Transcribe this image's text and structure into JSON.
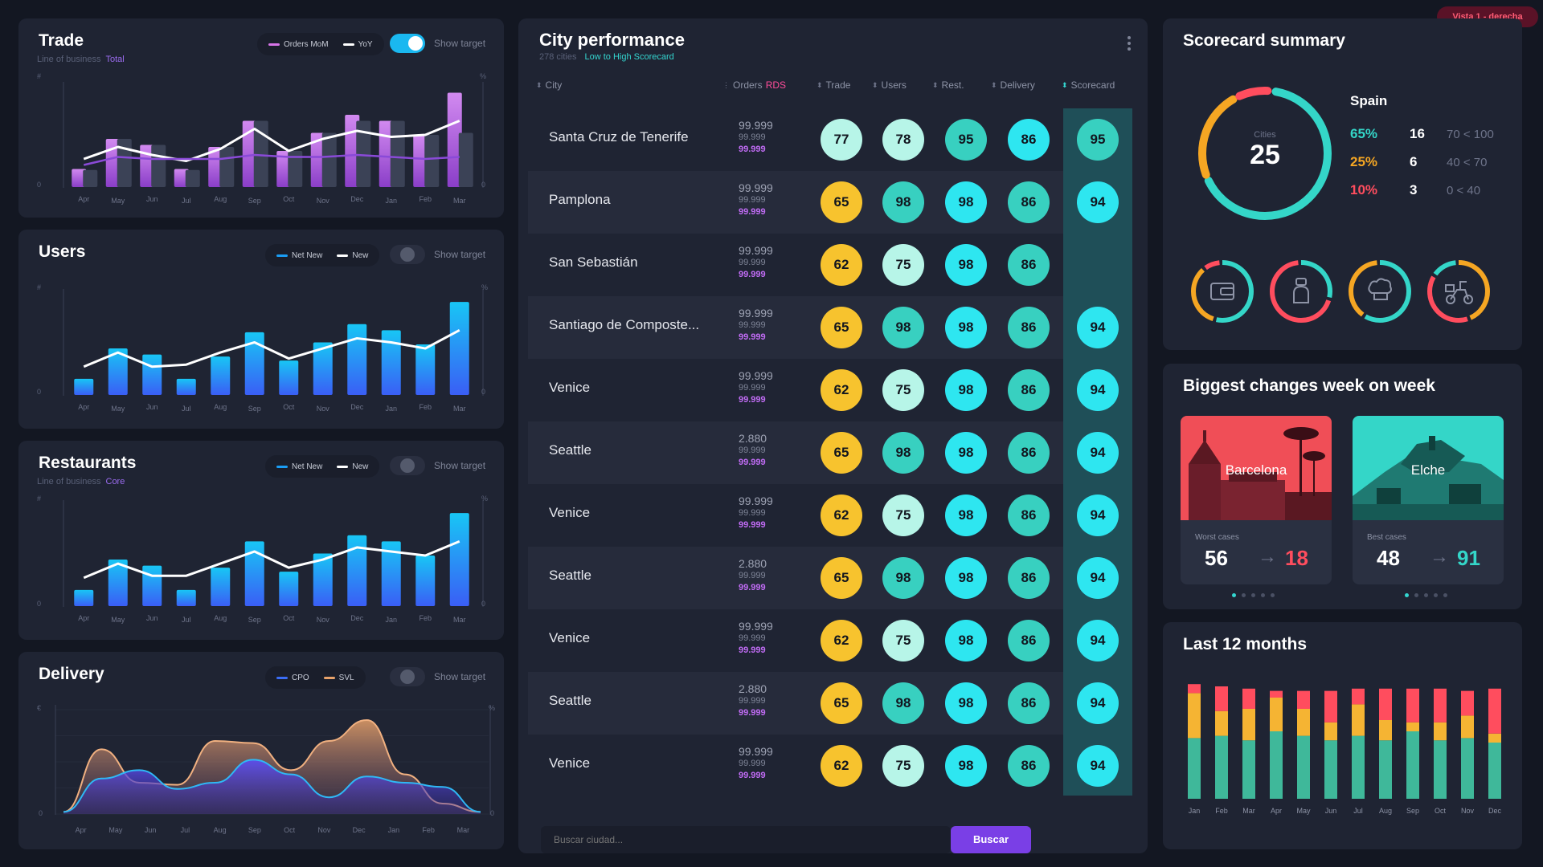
{
  "vista": "Vista 1 -  derecha",
  "trade": {
    "title": "Trade",
    "subtitle": "Line of business",
    "subtitle_value": "Total",
    "legend": [
      "Orders MoM",
      "YoY"
    ],
    "toggle_on": true,
    "show_target": "Show target",
    "axis_left_top": "#",
    "axis_right_top": "%",
    "axis_zero": "0",
    "months": [
      "Apr",
      "May",
      "Jun",
      "Jul",
      "Aug",
      "Sep",
      "Oct",
      "Nov",
      "Dec",
      "Jan",
      "Feb",
      "Mar"
    ]
  },
  "users": {
    "title": "Users",
    "legend": [
      "Net New",
      "New"
    ],
    "toggle_on": false,
    "show_target": "Show target",
    "axis_left_top": "#",
    "axis_right_top": "%",
    "axis_zero": "0",
    "months": [
      "Apr",
      "May",
      "Jun",
      "Jul",
      "Aug",
      "Sep",
      "Oct",
      "Nov",
      "Dec",
      "Jan",
      "Feb",
      "Mar"
    ]
  },
  "restaurants": {
    "title": "Restaurants",
    "subtitle": "Line of business",
    "subtitle_value": "Core",
    "legend": [
      "Net New",
      "New"
    ],
    "toggle_on": false,
    "show_target": "Show target",
    "axis_left_top": "#",
    "axis_right_top": "%",
    "axis_zero": "0",
    "months": [
      "Apr",
      "May",
      "Jun",
      "Jul",
      "Aug",
      "Sep",
      "Oct",
      "Nov",
      "Dec",
      "Jan",
      "Feb",
      "Mar"
    ]
  },
  "delivery": {
    "title": "Delivery",
    "legend": [
      "CPO",
      "SVL"
    ],
    "toggle_on": false,
    "show_target": "Show target",
    "axis_left_top": "€",
    "axis_right_top": "%",
    "axis_zero": "0",
    "months": [
      "Apr",
      "May",
      "Jun",
      "Jul",
      "Aug",
      "Sep",
      "Oct",
      "Nov",
      "Dec",
      "Jan",
      "Feb",
      "Mar"
    ]
  },
  "city_performance": {
    "title": "City performance",
    "count": "278 cities",
    "sort": "Low to High Scorecard",
    "columns": {
      "city": "City",
      "orders": "Orders",
      "orders_suffix": "RDS",
      "trade": "Trade",
      "users": "Users",
      "rest": "Rest.",
      "delivery": "Delivery",
      "scorecard": "Scorecard"
    },
    "rows": [
      {
        "city": "Santa Cruz de Tenerife",
        "o1": "99.999",
        "o2": "99.999",
        "o3": "99.999",
        "trade": 77,
        "users": 78,
        "rest": 95,
        "delivery": 86,
        "scorecard": 95
      },
      {
        "city": "Pamplona",
        "o1": "99.999",
        "o2": "99.999",
        "o3": "99.999",
        "trade": 65,
        "users": 98,
        "rest": 98,
        "delivery": 86,
        "scorecard": 94
      },
      {
        "city": "San Sebastián",
        "o1": "99.999",
        "o2": "99.999",
        "o3": "99.999",
        "trade": 62,
        "users": 75,
        "rest": 98,
        "delivery": 86,
        "scorecard": null
      },
      {
        "city": "Santiago de Composte...",
        "o1": "99.999",
        "o2": "99.999",
        "o3": "99.999",
        "trade": 65,
        "users": 98,
        "rest": 98,
        "delivery": 86,
        "scorecard": 94
      },
      {
        "city": "Venice",
        "o1": "99.999",
        "o2": "99.999",
        "o3": "99.999",
        "trade": 62,
        "users": 75,
        "rest": 98,
        "delivery": 86,
        "scorecard": 94
      },
      {
        "city": "Seattle",
        "o1": "2.880",
        "o2": "99.999",
        "o3": "99.999",
        "trade": 65,
        "users": 98,
        "rest": 98,
        "delivery": 86,
        "scorecard": 94
      },
      {
        "city": "Venice",
        "o1": "99.999",
        "o2": "99.999",
        "o3": "99.999",
        "trade": 62,
        "users": 75,
        "rest": 98,
        "delivery": 86,
        "scorecard": 94
      },
      {
        "city": "Seattle",
        "o1": "2.880",
        "o2": "99.999",
        "o3": "99.999",
        "trade": 65,
        "users": 98,
        "rest": 98,
        "delivery": 86,
        "scorecard": 94
      },
      {
        "city": "Venice",
        "o1": "99.999",
        "o2": "99.999",
        "o3": "99.999",
        "trade": 62,
        "users": 75,
        "rest": 98,
        "delivery": 86,
        "scorecard": 94
      },
      {
        "city": "Seattle",
        "o1": "2.880",
        "o2": "99.999",
        "o3": "99.999",
        "trade": 65,
        "users": 98,
        "rest": 98,
        "delivery": 86,
        "scorecard": 94
      },
      {
        "city": "Venice",
        "o1": "99.999",
        "o2": "99.999",
        "o3": "99.999",
        "trade": 62,
        "users": 75,
        "rest": 98,
        "delivery": 86,
        "scorecard": 94
      }
    ],
    "search_placeholder": "Buscar ciudad...",
    "search_button": "Buscar"
  },
  "scorecard_summary": {
    "title": "Scorecard summary",
    "donut_label": "Cities",
    "donut_value": "25",
    "country": "Spain",
    "breakdown": [
      {
        "pct": "65%",
        "count": "16",
        "range": "70 < 100",
        "color": "#34d6c8"
      },
      {
        "pct": "25%",
        "count": "6",
        "range": "40 < 70",
        "color": "#f5a623"
      },
      {
        "pct": "10%",
        "count": "3",
        "range": "0 < 40",
        "color": "#ff4d5e"
      }
    ],
    "icons": [
      "wallet-icon",
      "user-icon",
      "chef-hat-icon",
      "scooter-icon"
    ]
  },
  "biggest_changes": {
    "title": "Biggest changes week on week",
    "cards": [
      {
        "city": "Barcelona",
        "label": "Worst cases",
        "from": "56",
        "to": "18",
        "to_color": "#ff4d5e"
      },
      {
        "city": "Elche",
        "label": "Best cases",
        "from": "48",
        "to": "91",
        "to_color": "#34d6c8"
      }
    ],
    "arrow": "→"
  },
  "last12": {
    "title": "Last 12 months",
    "months": [
      "Jan",
      "Feb",
      "Mar",
      "Apr",
      "May",
      "Jun",
      "Jul",
      "Aug",
      "Sep",
      "Oct",
      "Nov",
      "Dec"
    ]
  },
  "chart_data": [
    {
      "type": "bar",
      "chart": "trade",
      "categories": [
        "Apr",
        "May",
        "Jun",
        "Jul",
        "Aug",
        "Sep",
        "Oct",
        "Nov",
        "Dec",
        "Jan",
        "Feb",
        "Mar"
      ],
      "series": [
        {
          "name": "Orders MoM",
          "values": [
            18,
            48,
            42,
            18,
            40,
            66,
            36,
            54,
            72,
            66,
            52,
            94
          ]
        },
        {
          "values": [
            17,
            48,
            42,
            17,
            40,
            66,
            36,
            54,
            66,
            66,
            52,
            54
          ]
        },
        {
          "name": "YoY",
          "values": [
            28,
            40,
            32,
            26,
            38,
            58,
            36,
            48,
            56,
            50,
            52,
            66
          ]
        },
        {
          "values": [
            22,
            30,
            28,
            28,
            28,
            32,
            30,
            30,
            32,
            30,
            28,
            30
          ]
        }
      ],
      "ylim": [
        0,
        100
      ]
    },
    {
      "type": "bar",
      "chart": "users",
      "categories": [
        "Apr",
        "May",
        "Jun",
        "Jul",
        "Aug",
        "Sep",
        "Oct",
        "Nov",
        "Dec",
        "Jan",
        "Feb",
        "Mar"
      ],
      "series": [
        {
          "name": "Net New",
          "values": [
            16,
            46,
            40,
            16,
            38,
            62,
            34,
            52,
            70,
            64,
            50,
            92
          ]
        },
        {
          "name": "New",
          "values": [
            28,
            42,
            28,
            30,
            42,
            52,
            36,
            46,
            56,
            52,
            46,
            64
          ]
        }
      ],
      "ylim": [
        0,
        100
      ]
    },
    {
      "type": "bar",
      "chart": "restaurants",
      "categories": [
        "Apr",
        "May",
        "Jun",
        "Jul",
        "Aug",
        "Sep",
        "Oct",
        "Nov",
        "Dec",
        "Jan",
        "Feb",
        "Mar"
      ],
      "series": [
        {
          "name": "Net New",
          "values": [
            16,
            46,
            40,
            16,
            38,
            64,
            34,
            52,
            70,
            64,
            50,
            92
          ]
        },
        {
          "name": "New",
          "values": [
            28,
            42,
            30,
            30,
            42,
            54,
            38,
            46,
            58,
            54,
            50,
            64
          ]
        }
      ],
      "ylim": [
        0,
        100
      ]
    },
    {
      "type": "area",
      "chart": "delivery",
      "categories": [
        "Apr",
        "May",
        "Jun",
        "Jul",
        "Aug",
        "Sep",
        "Oct",
        "Nov",
        "Dec",
        "Jan",
        "Feb",
        "Mar"
      ],
      "series": [
        {
          "name": "CPO",
          "values": [
            2,
            34,
            42,
            24,
            30,
            52,
            38,
            16,
            36,
            30,
            26,
            2
          ]
        },
        {
          "name": "SVL",
          "values": [
            2,
            62,
            30,
            28,
            70,
            68,
            42,
            70,
            90,
            38,
            10,
            2
          ]
        }
      ],
      "ylim": [
        0,
        100
      ]
    },
    {
      "type": "bar",
      "chart": "last12",
      "categories": [
        "Jan",
        "Feb",
        "Mar",
        "Apr",
        "May",
        "Jun",
        "Jul",
        "Aug",
        "Sep",
        "Oct",
        "Nov",
        "Dec"
      ],
      "series": [
        {
          "values": [
            54,
            56,
            52,
            60,
            56,
            52,
            56,
            52,
            60,
            52,
            54,
            50
          ]
        },
        {
          "values": [
            40,
            22,
            28,
            30,
            24,
            16,
            28,
            18,
            8,
            16,
            20,
            8
          ]
        },
        {
          "values": [
            8,
            22,
            18,
            6,
            16,
            28,
            14,
            28,
            30,
            30,
            22,
            40
          ]
        }
      ],
      "ylim": [
        0,
        100
      ]
    }
  ]
}
